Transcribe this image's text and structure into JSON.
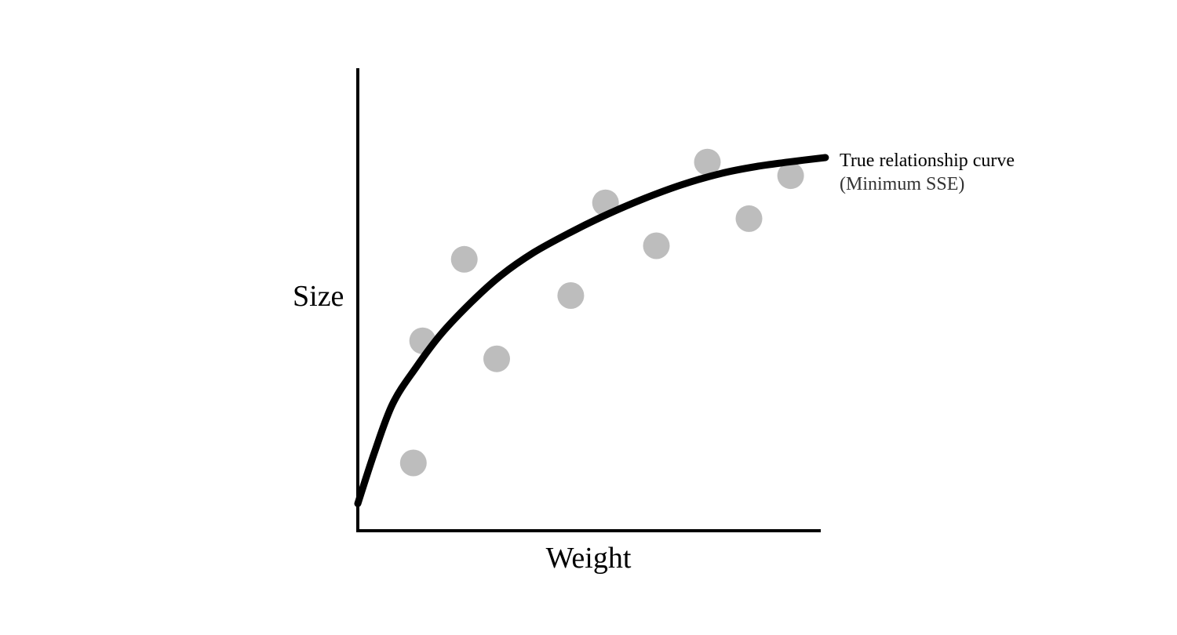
{
  "chart_data": {
    "type": "scatter",
    "xlabel": "Weight",
    "ylabel": "Size",
    "xlim": [
      0,
      100
    ],
    "ylim": [
      0,
      100
    ],
    "grid": false,
    "ticks_shown": false,
    "points": {
      "color": "#bdbdbd",
      "x": [
        12,
        23,
        14,
        30,
        46,
        53.5,
        64.5,
        75.5,
        84.5,
        93.5
      ],
      "y": [
        15,
        60,
        42,
        38,
        52,
        72.5,
        63,
        81.5,
        69,
        78.5
      ]
    },
    "curve": {
      "color": "#000000",
      "x": [
        0,
        3.5,
        7.5,
        12.5,
        18,
        24.5,
        31,
        38,
        46,
        54,
        62,
        70,
        78.5,
        86,
        93,
        101
      ],
      "y": [
        6,
        17,
        28,
        36,
        43.5,
        50.5,
        56.5,
        61.5,
        66,
        70,
        73.5,
        76.5,
        79,
        80.5,
        81.5,
        82.5
      ]
    },
    "annotation": {
      "line1": "True relationship curve",
      "line2": "(Minimum SSE)"
    }
  }
}
